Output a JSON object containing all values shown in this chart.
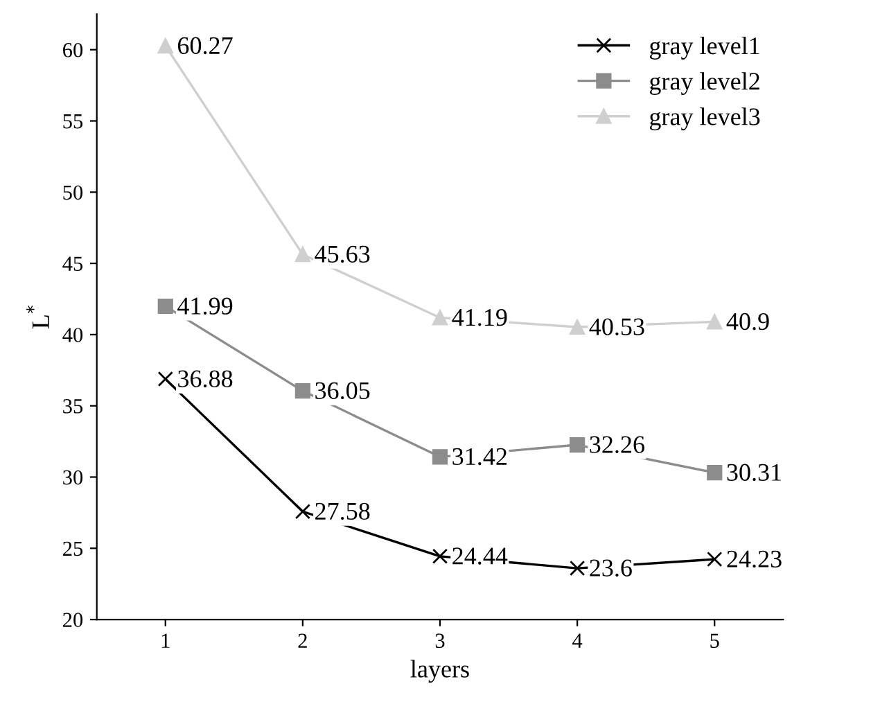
{
  "chart_data": {
    "type": "line",
    "xlabel": "layers",
    "ylabel": "L$^{*}$",
    "x": [
      1,
      2,
      3,
      4,
      5
    ],
    "series": [
      {
        "name": "gray level1",
        "color": "#000000",
        "marker": "cross",
        "values": [
          36.88,
          27.58,
          24.44,
          23.6,
          24.23
        ]
      },
      {
        "name": "gray level2",
        "color": "#8c8c8c",
        "marker": "square",
        "values": [
          41.99,
          36.05,
          31.42,
          32.26,
          30.31
        ]
      },
      {
        "name": "gray level3",
        "color": "#cfcfcf",
        "marker": "triangle",
        "values": [
          60.27,
          45.63,
          41.19,
          40.53,
          40.9
        ]
      }
    ],
    "xlim": [
      0.5,
      5.5
    ],
    "ylim": [
      20,
      62.5
    ],
    "xticks": [
      1,
      2,
      3,
      4,
      5
    ],
    "yticks": [
      20,
      25,
      30,
      35,
      40,
      45,
      50,
      55,
      60
    ],
    "data_labels": true,
    "grid": false,
    "legend": "top right",
    "line_style": "solid"
  }
}
